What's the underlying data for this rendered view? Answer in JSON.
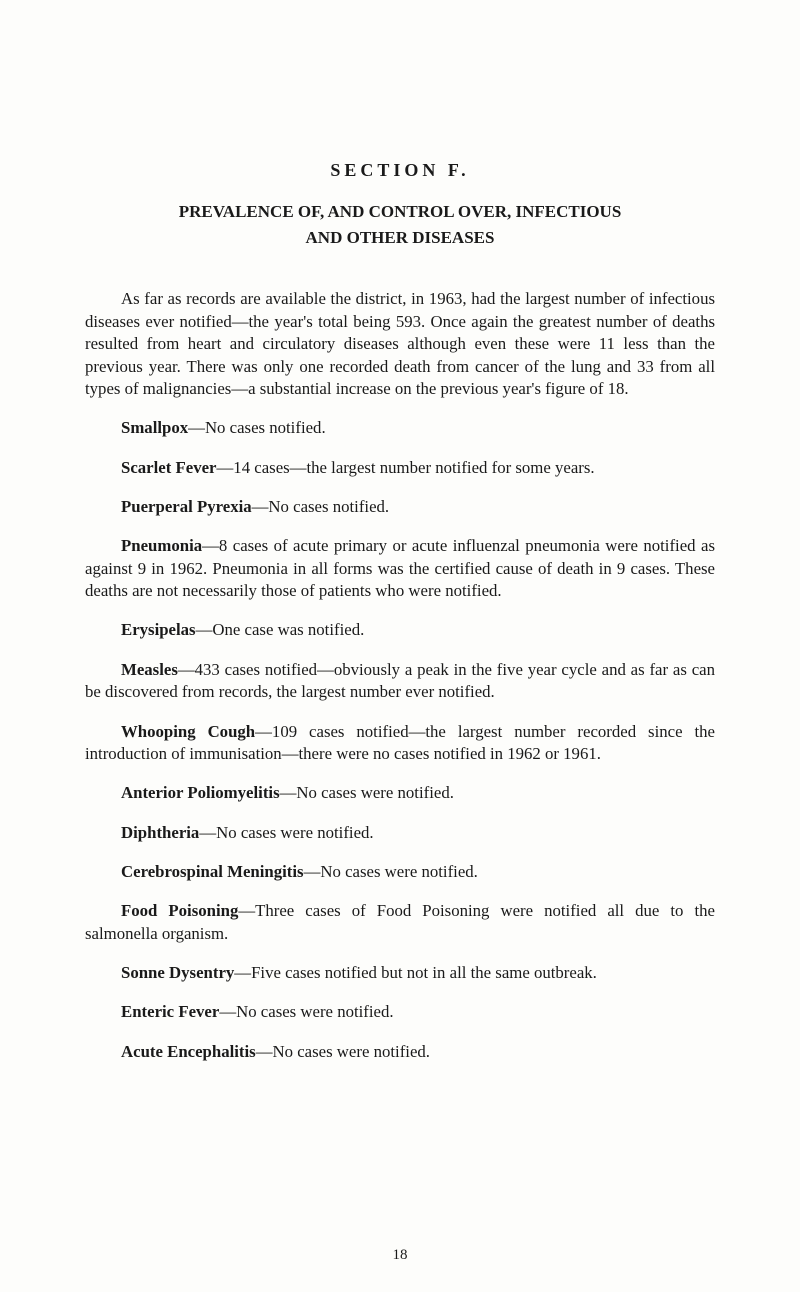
{
  "section": "SECTION  F.",
  "title_line1": "PREVALENCE OF, AND CONTROL OVER, INFECTIOUS",
  "title_line2": "AND OTHER DISEASES",
  "intro": "As far as records are available the district, in 1963, had the largest number of infectious diseases ever notified—the year's total being 593. Once again the greatest number of deaths resulted from heart and circulatory diseases although even these were 11 less than the previous year. There was only one recorded death from cancer of the lung and 33 from all types of malignancies—a substantial increase on the previous year's figure of 18.",
  "entries": [
    {
      "name": "Smallpox",
      "text": "—No cases notified."
    },
    {
      "name": "Scarlet Fever",
      "text": "—14 cases—the largest number notified for some years."
    },
    {
      "name": "Puerperal Pyrexia",
      "text": "—No cases notified."
    },
    {
      "name": "Pneumonia",
      "text": "—8 cases of acute primary or acute influenzal pneumonia were notified as against 9 in 1962. Pneumonia in all forms was the certified cause of death in 9 cases. These deaths are not necessarily those of patients who were notified."
    },
    {
      "name": "Erysipelas",
      "text": "—One case was notified."
    },
    {
      "name": "Measles",
      "text": "—433 cases notified—obviously a peak in the five year cycle and as far as can be discovered from records, the largest number ever notified."
    },
    {
      "name": "Whooping Cough",
      "text": "—109 cases notified—the largest number recorded since the introduction of immunisation—there were no cases notified in 1962 or 1961."
    },
    {
      "name": "Anterior Poliomyelitis",
      "text": "—No cases were notified."
    },
    {
      "name": "Diphtheria",
      "text": "—No cases were notified."
    },
    {
      "name": "Cerebrospinal Meningitis",
      "text": "—No cases were notified."
    },
    {
      "name": "Food Poisoning",
      "text": "—Three cases of Food Poisoning were notified all due to the salmonella organism."
    },
    {
      "name": "Sonne Dysentry",
      "text": "—Five cases notified but not in all the same outbreak."
    },
    {
      "name": "Enteric Fever",
      "text": "—No cases were notified."
    },
    {
      "name": "Acute Encephalitis",
      "text": "—No cases were notified."
    }
  ],
  "page_number": "18"
}
